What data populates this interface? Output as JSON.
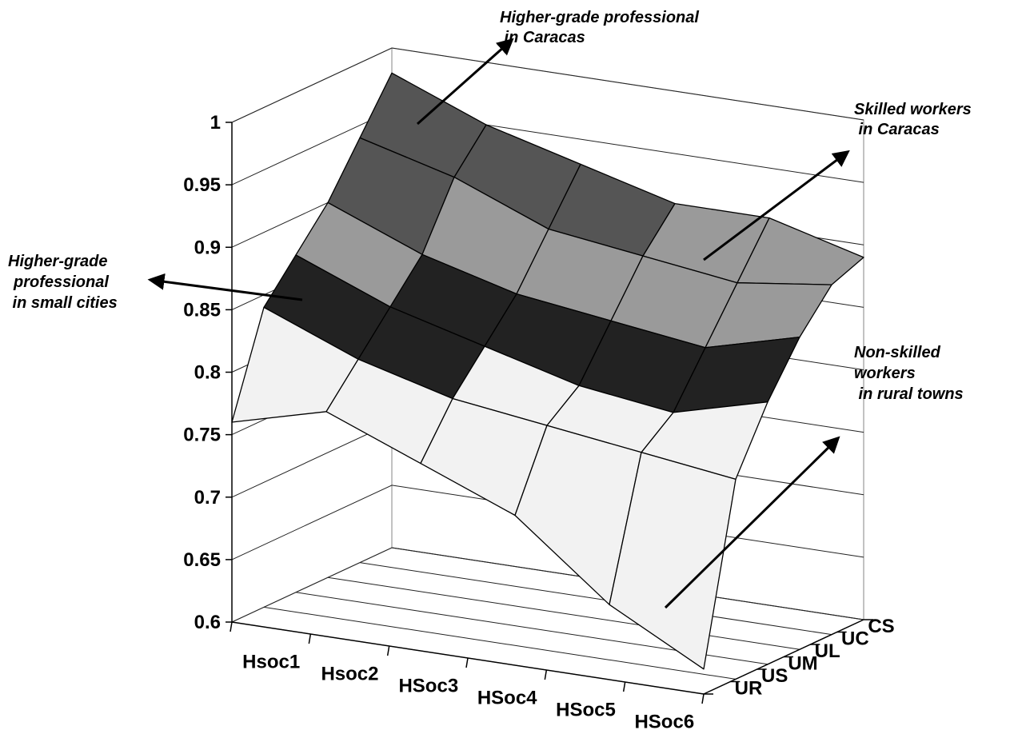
{
  "chart_data": {
    "type": "surface",
    "title": "",
    "x_categories": [
      "Hsoc1",
      "Hsoc2",
      "HSoc3",
      "HSoc4",
      "HSoc5",
      "HSoc6"
    ],
    "y_categories": [
      "UR",
      "US",
      "UM",
      "UL",
      "UC",
      "CS"
    ],
    "z_ticks": [
      "0.6",
      "0.65",
      "0.7",
      "0.75",
      "0.8",
      "0.85",
      "0.9",
      "0.95",
      "1"
    ],
    "zlim": [
      0.6,
      1.0
    ],
    "grid": true,
    "band_colors": {
      "0.60-0.65": "#555555",
      "0.65-0.80": "#f2f2f2",
      "0.80-0.85": "#222222",
      "0.85-0.90": "#9a9a9a",
      "0.90-0.95": "#555555",
      "0.95-1.00": "#e8e8e8"
    },
    "z_values": [
      [
        0.76,
        0.78,
        0.75,
        0.72,
        0.66,
        0.62
      ],
      [
        0.84,
        0.81,
        0.79,
        0.78,
        0.77,
        0.76
      ],
      [
        0.87,
        0.84,
        0.82,
        0.8,
        0.79,
        0.81
      ],
      [
        0.9,
        0.87,
        0.85,
        0.84,
        0.83,
        0.85
      ],
      [
        0.94,
        0.92,
        0.89,
        0.88,
        0.87,
        0.88
      ],
      [
        0.98,
        0.95,
        0.93,
        0.91,
        0.91,
        0.89
      ]
    ],
    "annotations": [
      "Higher-grade professional in Caracas",
      "Skilled workers in Caracas",
      "Higher-grade professional in small cities",
      "Non-skilled workers in rural towns"
    ]
  },
  "annotations": {
    "hgp_caracas": [
      "Higher-grade professional",
      " in Caracas"
    ],
    "skilled_caracas": [
      "Skilled workers",
      " in Caracas"
    ],
    "hgp_small_cities": [
      "Higher-grade",
      "professional",
      " in small cities"
    ],
    "nonskilled_rural": [
      "Non-skilled",
      "workers",
      " in rural towns"
    ]
  }
}
